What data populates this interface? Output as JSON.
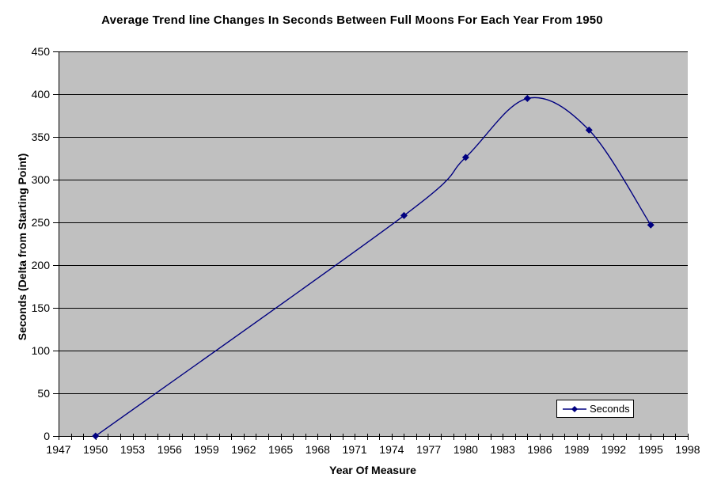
{
  "title": "Average Trend line Changes In Seconds Between Full Moons For Each Year From 1950",
  "chart_data": {
    "type": "line",
    "smooth": true,
    "title": "Average Trend line Changes In Seconds Between Full Moons For Each Year From 1950",
    "xlabel": "Year Of Measure",
    "ylabel": "Seconds (Delta from Starting Point)",
    "series": [
      {
        "name": "Seconds",
        "x": [
          1950,
          1975,
          1980,
          1985,
          1990,
          1995
        ],
        "y": [
          0,
          258,
          326,
          395,
          358,
          247
        ]
      }
    ],
    "xlim": [
      1947,
      1998
    ],
    "ylim": [
      0,
      450
    ],
    "x_tick_labels": [
      "1947",
      "1950",
      "1953",
      "1956",
      "1959",
      "1962",
      "1965",
      "1968",
      "1971",
      "1974",
      "1977",
      "1980",
      "1983",
      "1986",
      "1989",
      "1992",
      "1995",
      "1998"
    ],
    "x_major_tick_step": 3,
    "x_minor_tick_step": 1,
    "y_tick_labels": [
      "0",
      "50",
      "100",
      "150",
      "200",
      "250",
      "300",
      "350",
      "400",
      "450"
    ],
    "y_tick_step": 50,
    "grid": "horizontal",
    "legend": {
      "entries": [
        "Seconds"
      ],
      "position": "inside-bottom-right"
    },
    "marker": "diamond",
    "colors": {
      "line": "#000080",
      "marker": "#000080",
      "plot_background": "#C0C0C0",
      "gridline": "#000000",
      "axis": "#000000",
      "page_background": "#FFFFFF",
      "text": "#000000"
    }
  }
}
